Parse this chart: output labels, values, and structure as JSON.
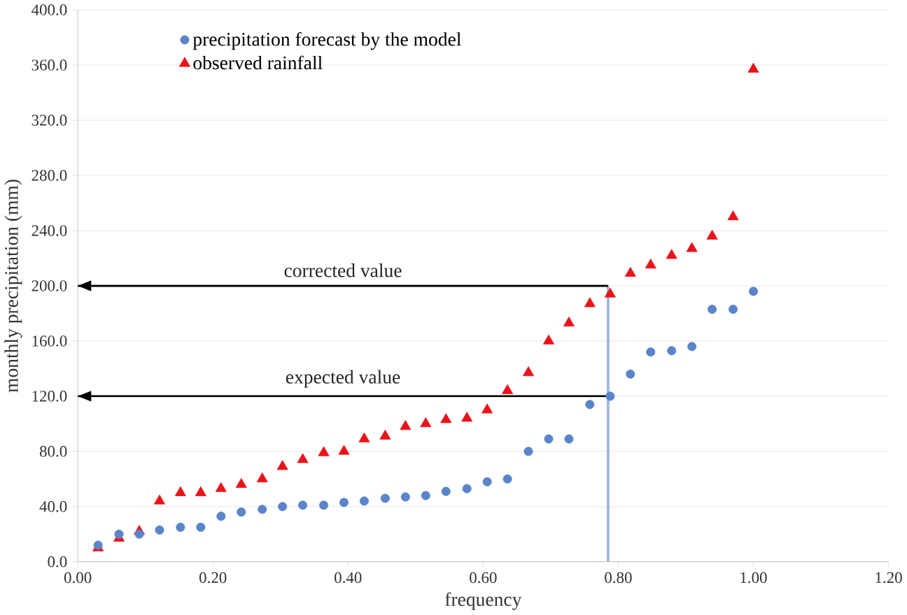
{
  "chart_data": {
    "type": "scatter",
    "xlabel": "frequency",
    "ylabel": "monthly precipitation (mm)",
    "x": [
      0.03,
      0.061,
      0.091,
      0.121,
      0.152,
      0.182,
      0.212,
      0.242,
      0.273,
      0.303,
      0.333,
      0.364,
      0.394,
      0.424,
      0.455,
      0.485,
      0.515,
      0.545,
      0.576,
      0.606,
      0.636,
      0.667,
      0.697,
      0.727,
      0.758,
      0.788,
      0.818,
      0.848,
      0.879,
      0.909,
      0.939,
      0.97,
      1.0
    ],
    "series": [
      {
        "name": "precipitation forecast by the model",
        "color": "#5b85c9",
        "marker": "circle",
        "values": [
          12,
          20,
          20,
          23,
          25,
          25,
          33,
          36,
          38,
          40,
          41,
          41,
          43,
          44,
          46,
          47,
          48,
          51,
          53,
          58,
          60,
          80,
          89,
          89,
          114,
          120,
          136,
          152,
          153,
          156,
          183,
          183,
          196
        ]
      },
      {
        "name": "observed rainfall",
        "color": "#e8141a",
        "marker": "triangle",
        "values": [
          10,
          17,
          22,
          44,
          50,
          50,
          53,
          56,
          60,
          69,
          74,
          79,
          80,
          89,
          91,
          98,
          100,
          103,
          104,
          110,
          124,
          137,
          160,
          173,
          187,
          194,
          209,
          215,
          222,
          227,
          236,
          250,
          357
        ]
      }
    ],
    "xlim": [
      0,
      1.2
    ],
    "ylim": [
      0,
      400
    ],
    "xticks": [
      {
        "value": 0,
        "label": "0.00"
      },
      {
        "value": 0.2,
        "label": "0.20"
      },
      {
        "value": 0.4,
        "label": "0.40"
      },
      {
        "value": 0.6,
        "label": "0.60"
      },
      {
        "value": 0.8,
        "label": "0.80"
      },
      {
        "value": 1.0,
        "label": "1.00"
      },
      {
        "value": 1.2,
        "label": "1.20"
      }
    ],
    "yticks": [
      {
        "value": 0,
        "label": "0.0"
      },
      {
        "value": 40,
        "label": "40.0"
      },
      {
        "value": 80,
        "label": "80.0"
      },
      {
        "value": 120,
        "label": "120.0"
      },
      {
        "value": 160,
        "label": "160.0"
      },
      {
        "value": 200,
        "label": "200.0"
      },
      {
        "value": 240,
        "label": "240.0"
      },
      {
        "value": 280,
        "label": "280.0"
      },
      {
        "value": 320,
        "label": "320.0"
      },
      {
        "value": 360,
        "label": "360.0"
      },
      {
        "value": 400,
        "label": "400.0"
      }
    ],
    "grid": "y",
    "legend": "top left",
    "ref_lines": [
      {
        "axis": "x",
        "value": 0.785,
        "color": "#9db8dc"
      },
      {
        "axis": "y",
        "value": 200,
        "label": "corrected value",
        "color": "#000000"
      },
      {
        "axis": "y",
        "value": 120,
        "label": "expected value",
        "color": "#000000"
      }
    ]
  }
}
